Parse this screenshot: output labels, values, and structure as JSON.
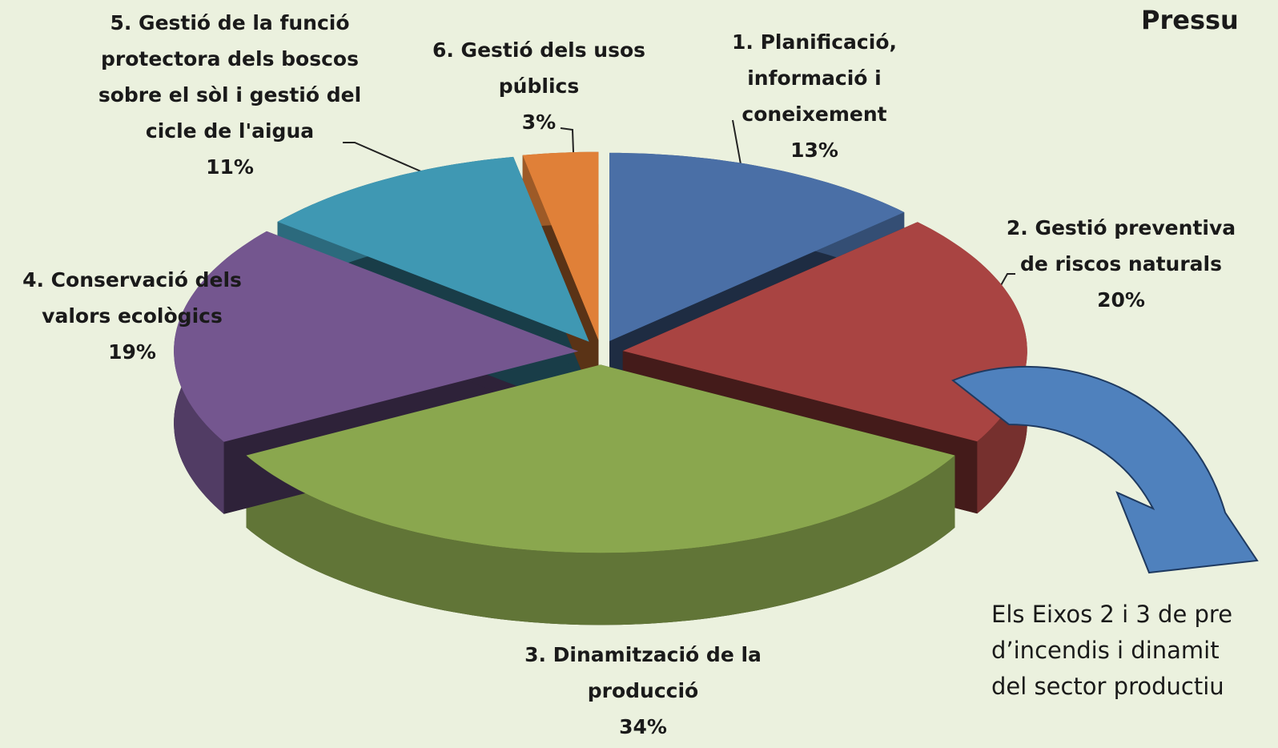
{
  "chart_data": {
    "type": "pie",
    "title": "Pressu",
    "categories": [
      "1. Planificació, informació i coneixement",
      "2. Gestió preventiva de riscos naturals",
      "3. Dinamització de la producció",
      "4. Conservació dels valors ecològics",
      "5. Gestió de la funció protectora dels boscos sobre el sòl i gestió del cicle de l'aigua",
      "6. Gestió dels usos públics"
    ],
    "values": [
      13,
      20,
      34,
      19,
      11,
      3
    ],
    "value_labels": [
      "13%",
      "20%",
      "34%",
      "19%",
      "11%",
      "3%"
    ],
    "colors": [
      "#4a6fa6",
      "#a94442",
      "#8aa74e",
      "#74568f",
      "#3f98b3",
      "#e08038"
    ],
    "annotation": [
      "Els Eixos 2 i 3 de pre",
      "d’incendis i dinamit",
      "del sector productiu"
    ]
  }
}
